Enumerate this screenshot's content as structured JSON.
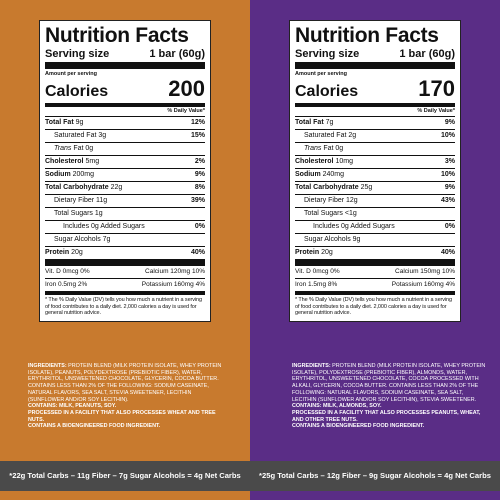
{
  "left": {
    "panel_color": "#c87a2e",
    "title": "Nutrition Facts",
    "serving_label": "Serving size",
    "serving_value": "1 bar (60g)",
    "amount_per_serving": "Amount per serving",
    "calories_label": "Calories",
    "calories_value": "200",
    "dv_header": "% Daily Value*",
    "total_fat_label": "Total Fat",
    "total_fat_amt": "9g",
    "total_fat_dv": "12%",
    "sat_fat_label": "Saturated Fat",
    "sat_fat_amt": "3g",
    "sat_fat_dv": "15%",
    "trans_fat_label": "Trans",
    "trans_fat_rest": "Fat 0g",
    "cholesterol_label": "Cholesterol",
    "cholesterol_amt": "5mg",
    "cholesterol_dv": "2%",
    "sodium_label": "Sodium",
    "sodium_amt": "200mg",
    "sodium_dv": "9%",
    "carb_label": "Total Carbohydrate",
    "carb_amt": "22g",
    "carb_dv": "8%",
    "fiber_label": "Dietary Fiber 11g",
    "fiber_dv": "39%",
    "sugars_label": "Total Sugars 1g",
    "added_sugars_label": "Includes 0g Added Sugars",
    "added_sugars_dv": "0%",
    "sugar_alcohols_label": "Sugar Alcohols 7g",
    "protein_label": "Protein",
    "protein_amt": "20g",
    "protein_dv": "40%",
    "vit_d": "Vit. D 0mcg 0%",
    "calcium": "Calcium 120mg 10%",
    "iron": "Iron 0.5mg 2%",
    "potassium": "Potassium 160mg 4%",
    "footnote": "* The % Daily Value (DV) tells you how much a nutrient in a serving of food contributes to a daily diet. 2,000 calories a day is used for general nutrition advice.",
    "ingredients_label": "Ingredients:",
    "ingredients_text": "Protein Blend (Milk Protein Isolate, Whey Protein Isolate), Peanuts, Polydextrose (Prebiotic Fiber), Water, Erythritol, Unsweetened Chocolate, Glycerin, Cocoa Butter. Contains less than 2% of the following: Sodium Caseinate, Natural Flavors, Sea Salt, Stevia Sweetener, Lecithin (Sunflower and/or Soy Lecithin).",
    "contains": "Contains: Milk, Peanuts, Soy.",
    "facility": "Processed in a facility that also processes wheat and tree nuts.",
    "bioengineered": "Contains a bioengineered food ingredient.",
    "net_carbs": "*22g Total Carbs – 11g Fiber – 7g Sugar Alcohols = 4g Net Carbs"
  },
  "right": {
    "panel_color": "#5a2d86",
    "title": "Nutrition Facts",
    "serving_label": "Serving size",
    "serving_value": "1 bar (60g)",
    "amount_per_serving": "Amount per serving",
    "calories_label": "Calories",
    "calories_value": "170",
    "dv_header": "% Daily Value*",
    "total_fat_label": "Total Fat",
    "total_fat_amt": "7g",
    "total_fat_dv": "9%",
    "sat_fat_label": "Saturated Fat",
    "sat_fat_amt": "2g",
    "sat_fat_dv": "10%",
    "trans_fat_label": "Trans",
    "trans_fat_rest": "Fat 0g",
    "cholesterol_label": "Cholesterol",
    "cholesterol_amt": "10mg",
    "cholesterol_dv": "3%",
    "sodium_label": "Sodium",
    "sodium_amt": "240mg",
    "sodium_dv": "10%",
    "carb_label": "Total Carbohydrate",
    "carb_amt": "25g",
    "carb_dv": "9%",
    "fiber_label": "Dietary Fiber 12g",
    "fiber_dv": "43%",
    "sugars_label": "Total Sugars <1g",
    "added_sugars_label": "Includes 0g Added Sugars",
    "added_sugars_dv": "0%",
    "sugar_alcohols_label": "Sugar Alcohols 9g",
    "protein_label": "Protein",
    "protein_amt": "20g",
    "protein_dv": "40%",
    "vit_d": "Vit. D 0mcg 0%",
    "calcium": "Calcium 150mg 10%",
    "iron": "Iron 1.5mg 8%",
    "potassium": "Potassium 160mg 4%",
    "footnote": "* The % Daily Value (DV) tells you how much a nutrient in a serving of food contributes to a daily diet. 2,000 calories a day is used for general nutrition advice.",
    "ingredients_label": "Ingredients:",
    "ingredients_text": "Protein Blend (Milk Protein Isolate, Whey Protein Isolate), Polydextrose (Prebiotic Fiber), Almonds, Water, Erythritol, Unsweetened Chocolate, Cocoa Processed with Alkali, Glycerin, Cocoa Butter. Contains less than 2% of the following: Natural Flavors, Sodium Caseinate, Sea Salt, Lecithin (Sunflower and/or Soy Lecithin), Stevia Sweetener.",
    "contains": "Contains: Milk, Almonds, Soy.",
    "facility": "Processed in a facility that also processes peanuts, wheat, and other tree nuts.",
    "bioengineered": "Contains a bioengineered food ingredient.",
    "net_carbs": "*25g Total Carbs – 12g Fiber – 9g Sugar Alcohols = 4g Net Carbs"
  }
}
